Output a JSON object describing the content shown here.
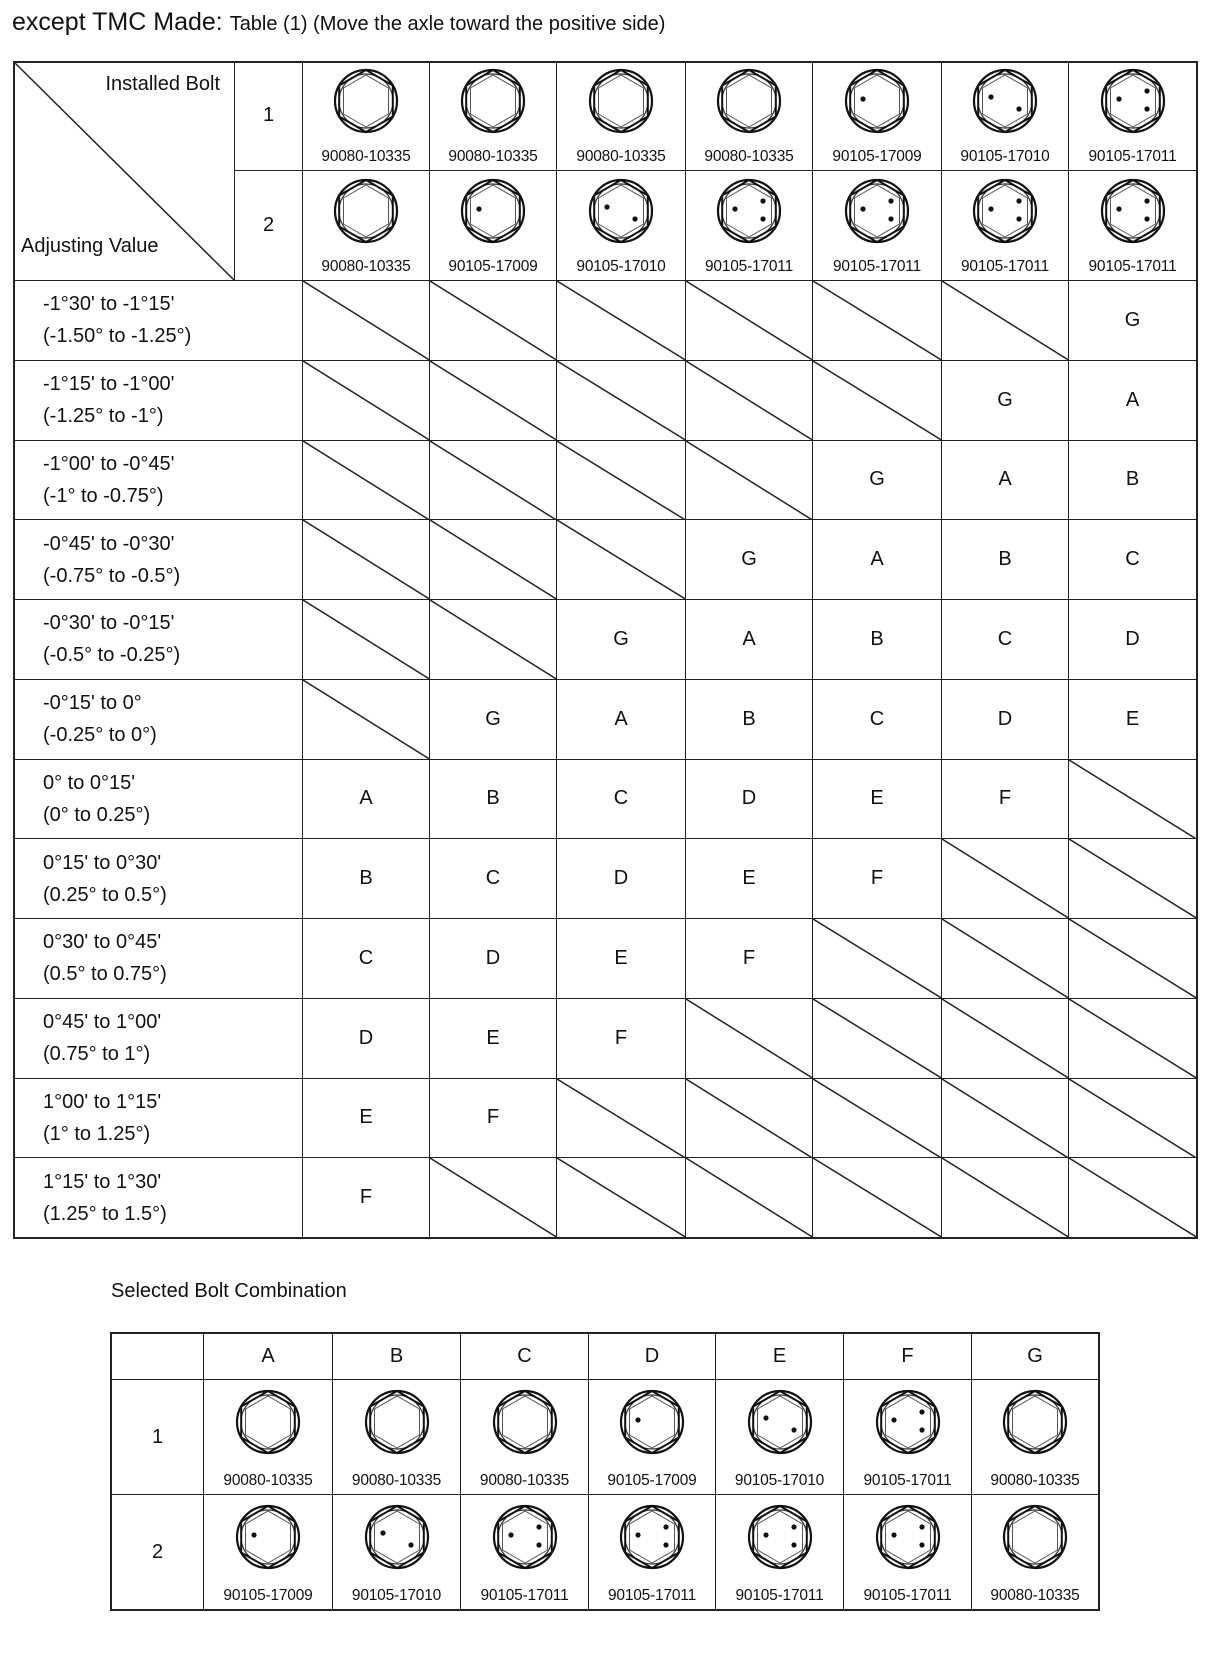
{
  "title": {
    "main": "except TMC Made:",
    "sub": "Table (1) (Move the axle toward the positive side)"
  },
  "table1": {
    "corner_top": "Installed Bolt",
    "corner_bottom": "Adjusting Value",
    "bolt_rows": [
      {
        "label": "1",
        "bolts": [
          "90080-10335",
          "90080-10335",
          "90080-10335",
          "90080-10335",
          "90105-17009",
          "90105-17010",
          "90105-17011"
        ]
      },
      {
        "label": "2",
        "bolts": [
          "90080-10335",
          "90105-17009",
          "90105-17010",
          "90105-17011",
          "90105-17011",
          "90105-17011",
          "90105-17011"
        ]
      }
    ],
    "rows": [
      {
        "range_deg_min": "-1°30' to -1°15'",
        "range_deg": "(-1.50° to -1.25°)",
        "values": [
          null,
          null,
          null,
          null,
          null,
          null,
          "G"
        ]
      },
      {
        "range_deg_min": "-1°15' to -1°00'",
        "range_deg": "(-1.25° to -1°)",
        "values": [
          null,
          null,
          null,
          null,
          null,
          "G",
          "A"
        ]
      },
      {
        "range_deg_min": "-1°00' to -0°45'",
        "range_deg": "(-1° to -0.75°)",
        "values": [
          null,
          null,
          null,
          null,
          "G",
          "A",
          "B"
        ]
      },
      {
        "range_deg_min": "-0°45' to -0°30'",
        "range_deg": "(-0.75° to -0.5°)",
        "values": [
          null,
          null,
          null,
          "G",
          "A",
          "B",
          "C"
        ]
      },
      {
        "range_deg_min": "-0°30' to -0°15'",
        "range_deg": "(-0.5° to -0.25°)",
        "values": [
          null,
          null,
          "G",
          "A",
          "B",
          "C",
          "D"
        ]
      },
      {
        "range_deg_min": "-0°15' to 0°",
        "range_deg": "(-0.25° to 0°)",
        "values": [
          null,
          "G",
          "A",
          "B",
          "C",
          "D",
          "E"
        ]
      },
      {
        "range_deg_min": "0° to 0°15'",
        "range_deg": "(0° to 0.25°)",
        "values": [
          "A",
          "B",
          "C",
          "D",
          "E",
          "F",
          null
        ]
      },
      {
        "range_deg_min": "0°15' to 0°30'",
        "range_deg": "(0.25° to 0.5°)",
        "values": [
          "B",
          "C",
          "D",
          "E",
          "F",
          null,
          null
        ]
      },
      {
        "range_deg_min": "0°30' to 0°45'",
        "range_deg": "(0.5° to 0.75°)",
        "values": [
          "C",
          "D",
          "E",
          "F",
          null,
          null,
          null
        ]
      },
      {
        "range_deg_min": "0°45' to 1°00'",
        "range_deg": "(0.75° to 1°)",
        "values": [
          "D",
          "E",
          "F",
          null,
          null,
          null,
          null
        ]
      },
      {
        "range_deg_min": "1°00' to 1°15'",
        "range_deg": "(1° to 1.25°)",
        "values": [
          "E",
          "F",
          null,
          null,
          null,
          null,
          null
        ]
      },
      {
        "range_deg_min": "1°15' to 1°30'",
        "range_deg": "(1.25° to 1.5°)",
        "values": [
          "F",
          null,
          null,
          null,
          null,
          null,
          null
        ]
      }
    ]
  },
  "selected": {
    "title": "Selected Bolt Combination",
    "columns": [
      "A",
      "B",
      "C",
      "D",
      "E",
      "F",
      "G"
    ],
    "rows": [
      {
        "label": "1",
        "bolts": [
          "90080-10335",
          "90080-10335",
          "90080-10335",
          "90105-17009",
          "90105-17010",
          "90105-17011",
          "90080-10335"
        ]
      },
      {
        "label": "2",
        "bolts": [
          "90105-17009",
          "90105-17010",
          "90105-17011",
          "90105-17011",
          "90105-17011",
          "90105-17011",
          "90080-10335"
        ]
      }
    ]
  },
  "bolt_marks": {
    "90080-10335": 0,
    "90105-17009": 1,
    "90105-17010": 2,
    "90105-17011": 3
  }
}
